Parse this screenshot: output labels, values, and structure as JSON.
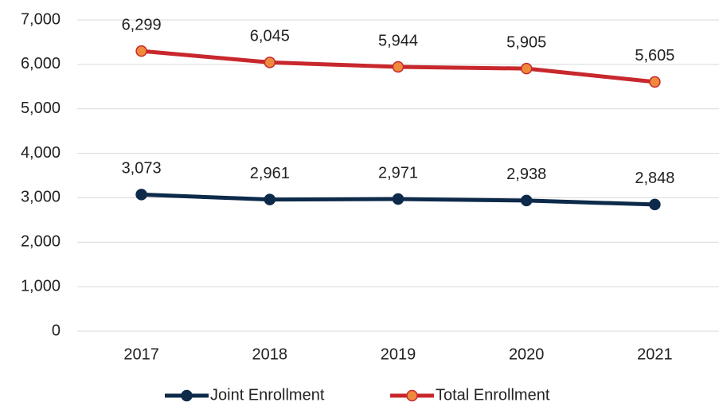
{
  "chart_data": {
    "type": "line",
    "categories": [
      "2017",
      "2018",
      "2019",
      "2020",
      "2021"
    ],
    "series": [
      {
        "name": "Joint Enrollment",
        "color": "#0d2a4a",
        "marker_color": "#0d2a4a",
        "values": [
          3073,
          2961,
          2971,
          2938,
          2848
        ],
        "value_labels": [
          "3,073",
          "2,961",
          "2,971",
          "2,938",
          "2,848"
        ]
      },
      {
        "name": "Total Enrollment",
        "color": "#c8282d",
        "marker_color": "#ee8a3c",
        "values": [
          6299,
          6045,
          5944,
          5905,
          5605
        ],
        "value_labels": [
          "6,299",
          "6,045",
          "5,944",
          "5,905",
          "5,605"
        ]
      }
    ],
    "ylim": [
      0,
      7000
    ],
    "yticks": [
      0,
      {
        "value": 1000,
        "label": "1,000"
      },
      {
        "value": 2000,
        "label": "2,000"
      },
      {
        "value": 3000,
        "label": "3,000"
      },
      {
        "value": 4000,
        "label": "4,000"
      },
      {
        "value": 5000,
        "label": "5,000"
      },
      {
        "value": 6000,
        "label": "6,000"
      },
      {
        "value": 7000,
        "label": "7,000"
      }
    ],
    "grid": true,
    "legend": "bottom"
  }
}
